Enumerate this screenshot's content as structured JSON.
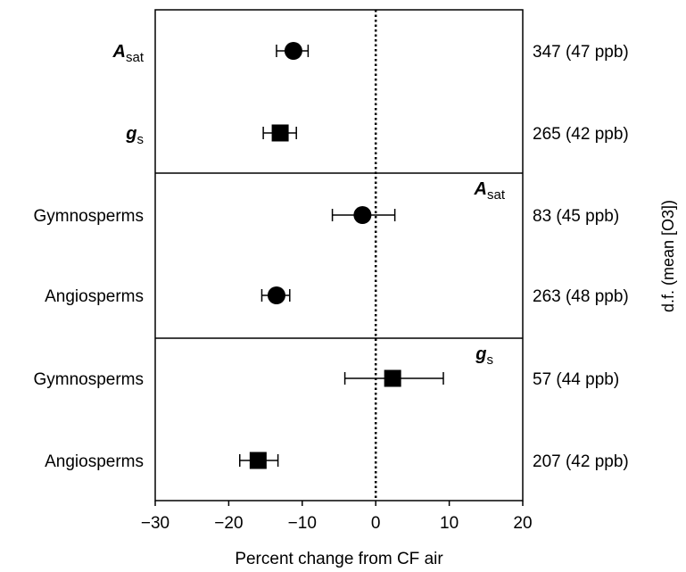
{
  "chart_data": {
    "type": "forest",
    "xlabel": "Percent change from CF air",
    "right_axis_label": "d.f. (mean [O3])",
    "xlim": [
      -30,
      20
    ],
    "xticks": [
      -30,
      -20,
      -10,
      0,
      10,
      20
    ],
    "xtick_labels": [
      "−30",
      "−20",
      "−10",
      "0",
      "10",
      "20"
    ],
    "reference_line": 0,
    "panel_labels": [
      {
        "symbol": "A",
        "subscript": "sat"
      },
      {
        "symbol": "g",
        "subscript": "s"
      }
    ],
    "rows": [
      {
        "label": "",
        "symbol": "A",
        "subscript": "sat",
        "marker": "circle",
        "mean": -11.2,
        "ci": [
          -13.5,
          -9.2
        ],
        "df_text": "347 (47 ppb)"
      },
      {
        "label": "",
        "symbol": "g",
        "subscript": "s",
        "marker": "square",
        "mean": -13.0,
        "ci": [
          -15.3,
          -10.8
        ],
        "df_text": "265 (42 ppb)"
      },
      {
        "label": "Gymnosperms",
        "symbol": "",
        "subscript": "",
        "marker": "circle",
        "mean": -1.8,
        "ci": [
          -5.9,
          2.6
        ],
        "df_text": "83 (45 ppb)"
      },
      {
        "label": "Angiosperms",
        "symbol": "",
        "subscript": "",
        "marker": "circle",
        "mean": -13.5,
        "ci": [
          -15.5,
          -11.7
        ],
        "df_text": "263 (48 ppb)"
      },
      {
        "label": "Gymnosperms",
        "symbol": "",
        "subscript": "",
        "marker": "square",
        "mean": 2.3,
        "ci": [
          -4.2,
          9.2
        ],
        "df_text": "57 (44 ppb)"
      },
      {
        "label": "Angiosperms",
        "symbol": "",
        "subscript": "",
        "marker": "square",
        "mean": -16.0,
        "ci": [
          -18.5,
          -13.3
        ],
        "df_text": "207 (42 ppb)"
      }
    ]
  }
}
